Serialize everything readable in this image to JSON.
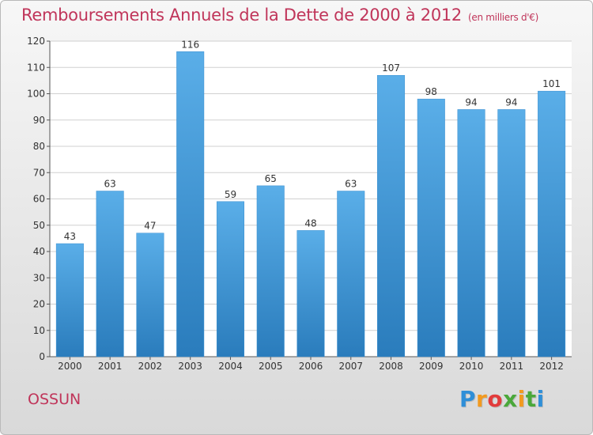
{
  "title": "Remboursements Annuels de la Dette de 2000 à 2012",
  "title_unit": "(en milliers d'€)",
  "location": "OSSUN",
  "logo_text": "Proxiti",
  "colors": {
    "title": "#c0355a",
    "bar_light": "#5aaee8",
    "bar_dark": "#2a7cbc",
    "grid": "#d0d0d0",
    "text": "#333333"
  },
  "chart_data": {
    "type": "bar",
    "title": "Remboursements Annuels de la Dette de 2000 à 2012",
    "categories": [
      "2000",
      "2001",
      "2002",
      "2003",
      "2004",
      "2005",
      "2006",
      "2007",
      "2008",
      "2009",
      "2010",
      "2011",
      "2012"
    ],
    "values": [
      43,
      63,
      47,
      116,
      59,
      65,
      48,
      63,
      107,
      98,
      94,
      94,
      101
    ],
    "ylim": [
      0,
      120
    ],
    "yticks": [
      0,
      10,
      20,
      30,
      40,
      50,
      60,
      70,
      80,
      90,
      100,
      110,
      120
    ],
    "grid": true,
    "legend": false,
    "data_labels": true
  }
}
